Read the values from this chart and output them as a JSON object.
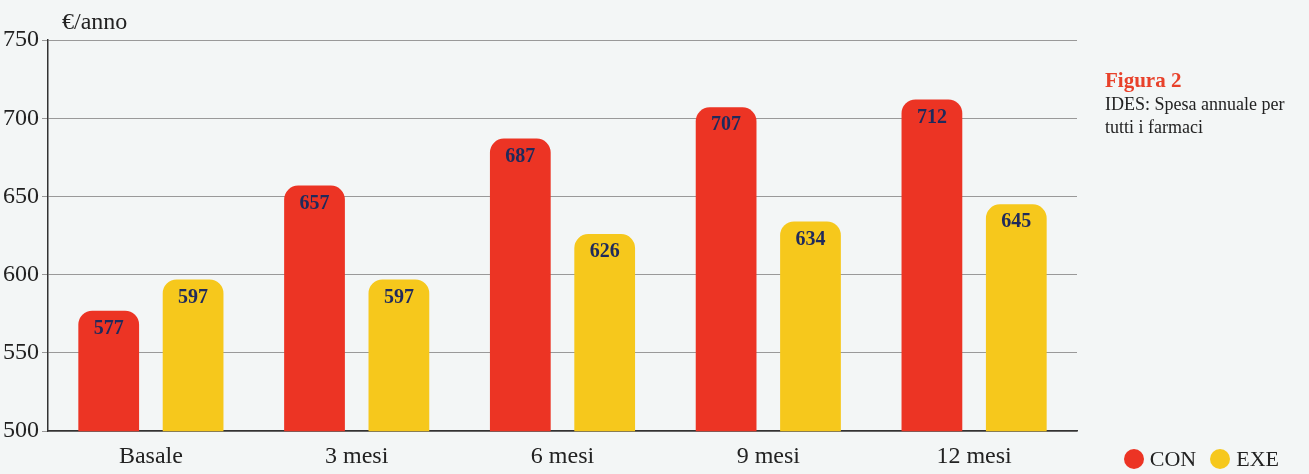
{
  "chart_data": {
    "type": "bar",
    "title": "Figura 2",
    "subtitle": "IDES: Spesa annuale per tutti i farmaci",
    "ylabel": "€/anno",
    "categories": [
      "Basale",
      "3 mesi",
      "6 mesi",
      "9 mesi",
      "12 mesi"
    ],
    "series": [
      {
        "name": "CON",
        "color": "#ec3424",
        "values": [
          577,
          657,
          687,
          707,
          712
        ]
      },
      {
        "name": "EXE",
        "color": "#f6c81c",
        "values": [
          597,
          597,
          626,
          634,
          645
        ]
      }
    ],
    "ylim": [
      500,
      750
    ],
    "yticks": [
      500,
      550,
      600,
      650,
      700,
      750
    ],
    "grid": "y",
    "legend": "bottom right",
    "data_labels": true
  }
}
